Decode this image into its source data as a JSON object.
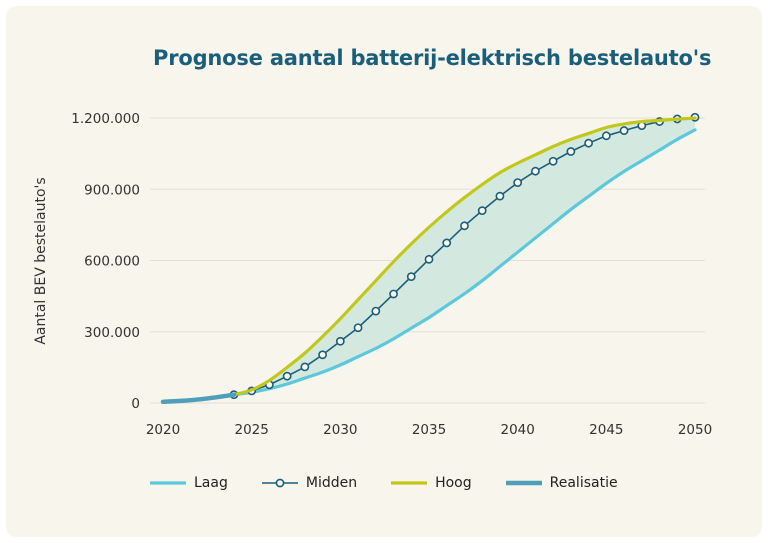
{
  "chart_data": {
    "type": "line",
    "title": "Prognose aantal batterij-elektrisch bestelauto's",
    "xlabel": "",
    "ylabel": "Aantal BEV bestelauto's",
    "xlim": [
      2020,
      2050
    ],
    "ylim": [
      0,
      1200000
    ],
    "x_ticks": [
      "2020",
      "2025",
      "2030",
      "2035",
      "2040",
      "2045",
      "2050"
    ],
    "y_ticks": [
      {
        "v": 0,
        "label": "0"
      },
      {
        "v": 300000,
        "label": "300.000"
      },
      {
        "v": 600000,
        "label": "600.000"
      },
      {
        "v": 900000,
        "label": "900.000"
      },
      {
        "v": 1200000,
        "label": "1.200.000"
      }
    ],
    "grid": true,
    "legend_position": "bottom",
    "series": [
      {
        "name": "Laag",
        "color": "#5bc8dc",
        "x": [
          2024,
          2025,
          2026,
          2027,
          2028,
          2029,
          2030,
          2031,
          2032,
          2033,
          2034,
          2035,
          2036,
          2037,
          2038,
          2039,
          2040,
          2041,
          2042,
          2043,
          2044,
          2045,
          2046,
          2047,
          2048,
          2049,
          2050
        ],
        "values": [
          35000,
          45000,
          60000,
          80000,
          105000,
          130000,
          160000,
          195000,
          230000,
          270000,
          315000,
          360000,
          410000,
          460000,
          515000,
          575000,
          635000,
          695000,
          755000,
          815000,
          870000,
          925000,
          975000,
          1020000,
          1065000,
          1110000,
          1150000
        ]
      },
      {
        "name": "Midden",
        "color": "#1b5e7b",
        "x": [
          2024,
          2025,
          2026,
          2027,
          2028,
          2029,
          2030,
          2031,
          2032,
          2033,
          2034,
          2035,
          2036,
          2037,
          2038,
          2039,
          2040,
          2041,
          2042,
          2043,
          2044,
          2045,
          2046,
          2047,
          2048,
          2049,
          2050
        ],
        "values": [
          35000,
          51000,
          77000,
          113000,
          152000,
          203000,
          260000,
          317000,
          387000,
          459000,
          532000,
          605000,
          674000,
          746000,
          810000,
          871000,
          928000,
          976000,
          1018000,
          1059000,
          1094000,
          1125000,
          1147000,
          1168000,
          1185000,
          1196000,
          1203000
        ]
      },
      {
        "name": "Hoog",
        "color": "#c2c81a",
        "x": [
          2024,
          2025,
          2026,
          2027,
          2028,
          2029,
          2030,
          2031,
          2032,
          2033,
          2034,
          2035,
          2036,
          2037,
          2038,
          2039,
          2040,
          2041,
          2042,
          2043,
          2044,
          2045,
          2046,
          2047,
          2048,
          2049,
          2050
        ],
        "values": [
          35000,
          55000,
          95000,
          150000,
          210000,
          280000,
          355000,
          435000,
          515000,
          595000,
          670000,
          740000,
          805000,
          865000,
          920000,
          970000,
          1010000,
          1045000,
          1080000,
          1110000,
          1135000,
          1160000,
          1175000,
          1185000,
          1190000,
          1195000,
          1200000
        ]
      },
      {
        "name": "Realisatie",
        "color": "#4f9fba",
        "x": [
          2020,
          2021,
          2022,
          2023,
          2024
        ],
        "values": [
          5000,
          9000,
          15000,
          24000,
          35000
        ]
      }
    ],
    "band_color": "#d3e9df"
  }
}
